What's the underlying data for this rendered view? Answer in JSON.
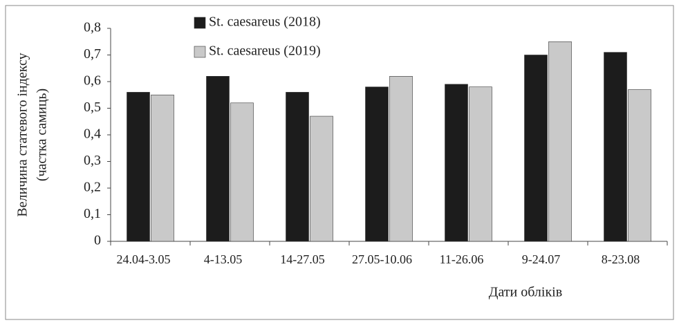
{
  "chart_data": {
    "type": "bar",
    "ylabel": [
      "Величина статевого індексу",
      "(частка самиць)"
    ],
    "xlabel": "Дати обліків",
    "categories": [
      "24.04-3.05",
      "4-13.05",
      "14-27.05",
      "27.05-10.06",
      "11-26.06",
      "9-24.07",
      "8-23.08"
    ],
    "series": [
      {
        "name": "St. caesareus (2018)",
        "color": "#1c1c1c",
        "values": [
          0.56,
          0.62,
          0.56,
          0.58,
          0.59,
          0.7,
          0.71
        ]
      },
      {
        "name": "St. caesareus (2019)",
        "color": "#c9c9c9",
        "values": [
          0.55,
          0.52,
          0.47,
          0.62,
          0.58,
          0.75,
          0.57
        ]
      }
    ],
    "ylim": [
      0,
      0.8
    ],
    "yticks": [
      0,
      {
        "value": 0.1,
        "label": "0,1"
      },
      {
        "value": 0.2,
        "label": "0,2"
      },
      {
        "value": 0.3,
        "label": "0,3"
      },
      {
        "value": 0.4,
        "label": "0,4"
      },
      {
        "value": 0.5,
        "label": "0,5"
      },
      {
        "value": 0.6,
        "label": "0,6"
      },
      {
        "value": 0.7,
        "label": "0,7"
      },
      {
        "value": 0.8,
        "label": "0,8"
      }
    ],
    "grid": false,
    "legend": "top"
  }
}
